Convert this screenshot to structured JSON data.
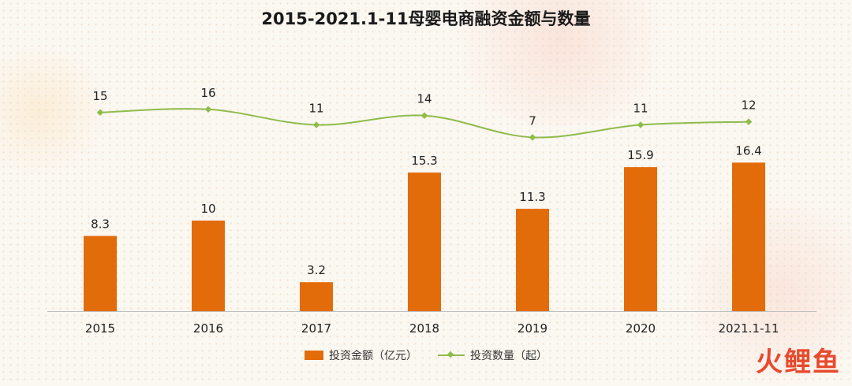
{
  "chart_data": {
    "type": "bar",
    "title": "2015-2021.1-11母婴电商融资金额与数量",
    "categories": [
      "2015",
      "2016",
      "2017",
      "2018",
      "2019",
      "2020",
      "2021.1-11"
    ],
    "series": [
      {
        "name": "投资金额（亿元）",
        "type": "bar",
        "values": [
          8.3,
          10,
          3.2,
          15.3,
          11.3,
          15.9,
          16.4
        ],
        "labels": [
          "8.3",
          "10",
          "3.2",
          "15.3",
          "11.3",
          "15.9",
          "16.4"
        ],
        "color": "#e36c0a"
      },
      {
        "name": "投资数量（起）",
        "type": "line",
        "values": [
          15,
          16,
          11,
          14,
          7,
          11,
          12
        ],
        "labels": [
          "15",
          "16",
          "11",
          "14",
          "7",
          "11",
          "12"
        ],
        "color": "#8fbc4b"
      }
    ],
    "legend_position": "bottom-center",
    "grid": false
  },
  "watermark": "火鲤鱼"
}
